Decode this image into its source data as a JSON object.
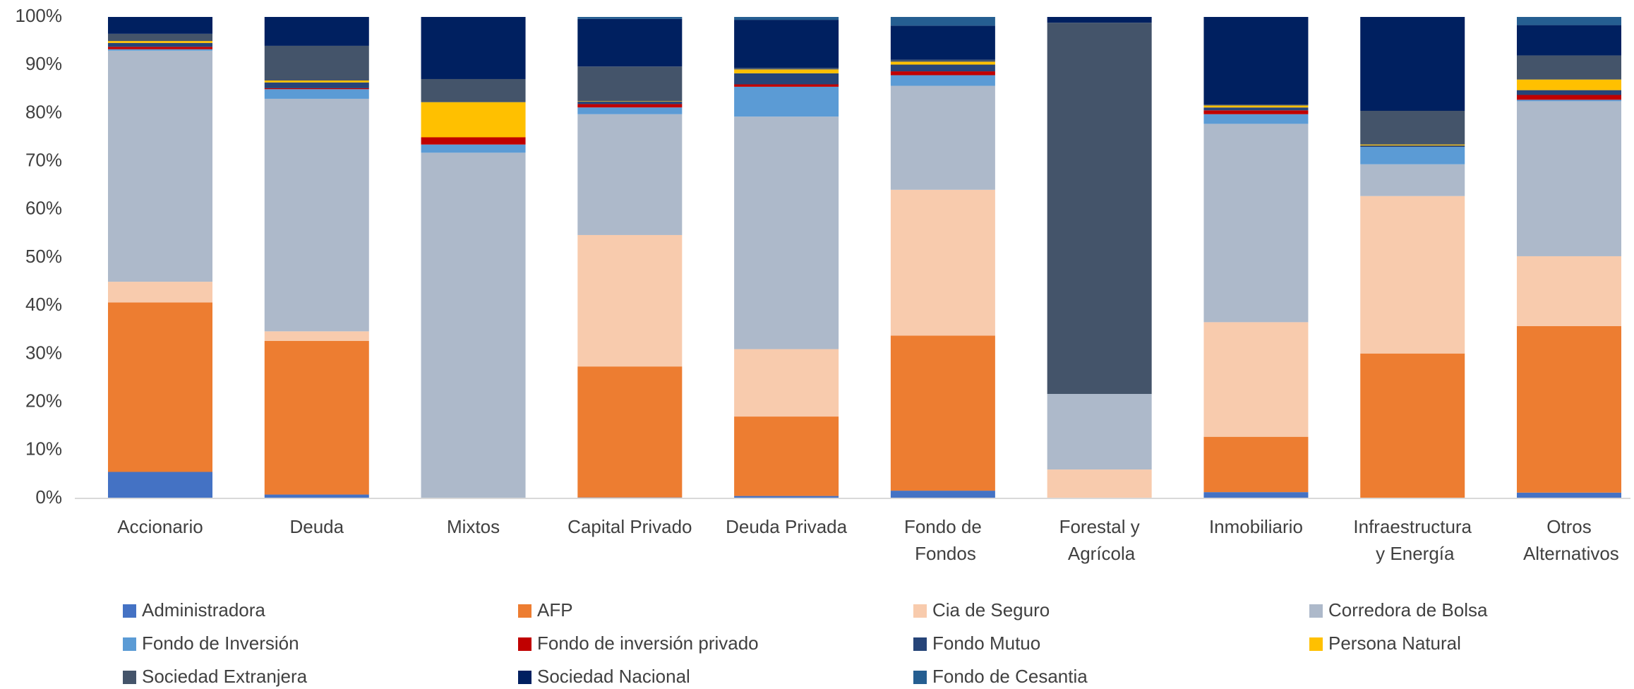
{
  "chart_data": {
    "type": "stacked_bar_100",
    "categories": [
      "Accionario",
      "Deuda",
      "Mixtos",
      "Capital Privado",
      "Deuda Privada",
      "Fondo de Fondos",
      "Forestal y Agrícola",
      "Inmobiliario",
      "Infraestructura y Energía",
      "Otros Alternativos"
    ],
    "series": [
      {
        "name": "Administradora",
        "color": "#4472c4",
        "values": [
          5.5,
          0.8,
          0,
          0.2,
          0.5,
          1.6,
          0,
          1.3,
          0,
          1.2
        ]
      },
      {
        "name": "AFP",
        "color": "#ed7d31",
        "values": [
          35.2,
          31.9,
          0,
          27.2,
          16.5,
          32.2,
          0,
          11.5,
          30.1,
          34.6
        ]
      },
      {
        "name": "Cia de Seguro",
        "color": "#f8cbad",
        "values": [
          4.3,
          2,
          0,
          27.3,
          14,
          30.3,
          6,
          23.8,
          32.7,
          14.5
        ]
      },
      {
        "name": "Corredora de Bolsa",
        "color": "#adb9ca",
        "values": [
          48,
          48.3,
          71.8,
          25.1,
          48.3,
          21.6,
          15.7,
          41.2,
          6.6,
          32.2
        ]
      },
      {
        "name": "Fondo de Inversión",
        "color": "#5b9bd5",
        "values": [
          0.3,
          2,
          1.7,
          1.4,
          6.2,
          2.2,
          0,
          2,
          3.6,
          0.3
        ]
      },
      {
        "name": "Fondo de inversión privado",
        "color": "#c00000",
        "values": [
          0.5,
          0.2,
          1.5,
          0.7,
          0.5,
          0.8,
          0,
          0.8,
          0,
          1
        ]
      },
      {
        "name": "Fondo Mutuo",
        "color": "#264478",
        "values": [
          0.8,
          1.2,
          0,
          0.5,
          2.3,
          1.4,
          0,
          0.6,
          0.3,
          1
        ]
      },
      {
        "name": "Persona Natural",
        "color": "#ffc000",
        "values": [
          0.4,
          0.4,
          7.3,
          0.1,
          0.8,
          0.6,
          0,
          0.4,
          0.2,
          2.2
        ]
      },
      {
        "name": "Sociedad Extranjera",
        "color": "#44546a",
        "values": [
          1.5,
          7.2,
          4.8,
          7.2,
          0.3,
          0.4,
          77.1,
          0.2,
          7,
          5
        ]
      },
      {
        "name": "Sociedad Nacional",
        "color": "#002060",
        "values": [
          3.5,
          6,
          12.9,
          9.9,
          10,
          7.1,
          1.2,
          18.2,
          19.5,
          6.3
        ]
      },
      {
        "name": "Fondo de Cesantia",
        "color": "#255e91",
        "values": [
          0,
          0,
          0,
          0.4,
          0.6,
          1.8,
          0,
          0,
          0,
          1.7
        ]
      }
    ],
    "ylim": [
      0,
      100
    ],
    "yticks": [
      {
        "value": 0,
        "label": "0%"
      },
      {
        "value": 10,
        "label": "10%"
      },
      {
        "value": 20,
        "label": "20%"
      },
      {
        "value": 30,
        "label": "30%"
      },
      {
        "value": 40,
        "label": "40%"
      },
      {
        "value": 50,
        "label": "50%"
      },
      {
        "value": 60,
        "label": "60%"
      },
      {
        "value": 70,
        "label": "70%"
      },
      {
        "value": 80,
        "label": "80%"
      },
      {
        "value": 90,
        "label": "90%"
      },
      {
        "value": 100,
        "label": "100%"
      }
    ],
    "grid": false,
    "legend": "bottom"
  }
}
